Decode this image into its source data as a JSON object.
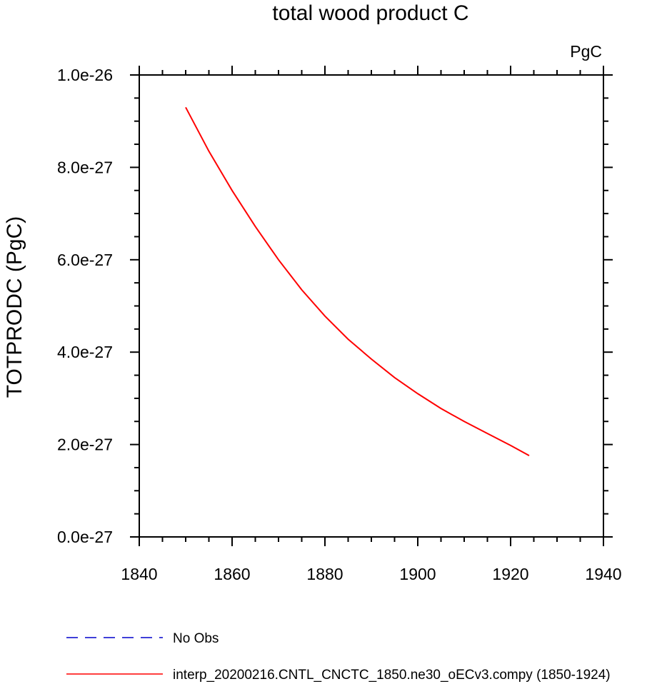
{
  "chart_data": {
    "type": "line",
    "title": "total wood product C",
    "units": "PgC",
    "xlabel": "",
    "ylabel": "TOTPRODC  (PgC)",
    "xlim": [
      1840,
      1940
    ],
    "ylim": [
      0,
      1e-26
    ],
    "xticks": [
      "1840",
      "1860",
      "1880",
      "1900",
      "1920",
      "1940"
    ],
    "yticks": [
      "0.0e-27",
      "2.0e-27",
      "4.0e-27",
      "6.0e-27",
      "8.0e-27",
      "1.0e-26"
    ],
    "grid": false,
    "legend_position": "bottom",
    "series": [
      {
        "name": "interp_20200216.CNTL_CNCTC_1850.ne30_oECv3.compy (1850-1924)",
        "color": "#ff0000",
        "style": "solid",
        "x": [
          1850,
          1855,
          1860,
          1865,
          1870,
          1875,
          1880,
          1885,
          1890,
          1895,
          1900,
          1905,
          1910,
          1915,
          1920,
          1924
        ],
        "y": [
          9.3e-27,
          8.35e-27,
          7.5e-27,
          6.72e-27,
          6e-27,
          5.35e-27,
          4.78e-27,
          4.28e-27,
          3.85e-27,
          3.45e-27,
          3.1e-27,
          2.78e-27,
          2.5e-27,
          2.24e-27,
          1.98e-27,
          1.76e-27
        ]
      }
    ],
    "legend": [
      {
        "label": "No Obs",
        "color": "#0000cc",
        "style": "dashed"
      },
      {
        "label": "interp_20200216.CNTL_CNCTC_1850.ne30_oECv3.compy (1850-1924)",
        "color": "#ff0000",
        "style": "solid"
      }
    ]
  }
}
